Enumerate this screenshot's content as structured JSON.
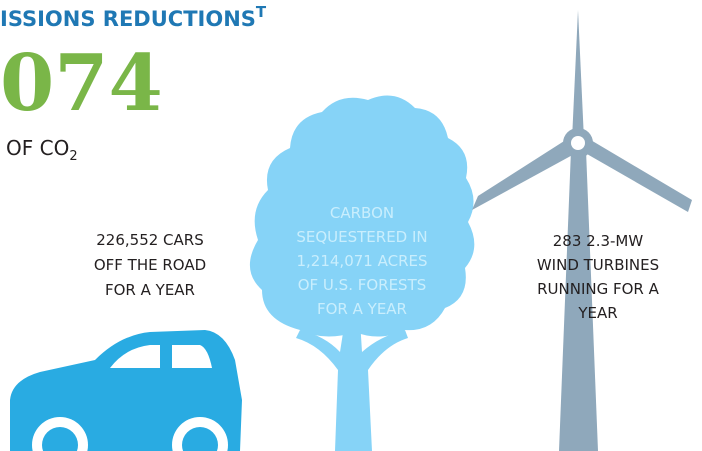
{
  "header": {
    "title": "ISSIONS REDUCTIONS",
    "title_superscript": "T",
    "figure": "074",
    "unit": "OF CO",
    "unit_subscript": "2"
  },
  "equivalents": [
    {
      "lines": [
        "226,552 CARS",
        "OFF THE ROAD",
        "FOR A YEAR"
      ]
    },
    {
      "lines": [
        "CARBON",
        "SEQUESTERED IN",
        "1,214,071 ACRES",
        "OF U.S. FORESTS",
        "FOR A YEAR"
      ]
    },
    {
      "lines": [
        "283 2.3-MW",
        "WIND TURBINES",
        "RUNNING FOR A",
        "YEAR"
      ]
    }
  ]
}
